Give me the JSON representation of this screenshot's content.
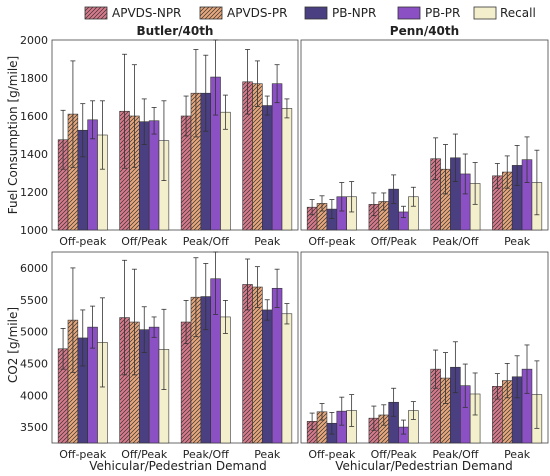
{
  "legend": [
    {
      "name": "APVDS-NPR",
      "color": "#d97a8c",
      "pattern": "hatch"
    },
    {
      "name": "APVDS-PR",
      "color": "#e8a77c",
      "pattern": "hatch"
    },
    {
      "name": "PB-NPR",
      "color": "#4a3f80",
      "pattern": "solid"
    },
    {
      "name": "PB-PR",
      "color": "#8a50c4",
      "pattern": "solid"
    },
    {
      "name": "Recall",
      "color": "#f3efcc",
      "pattern": "solid"
    }
  ],
  "xlabel": "Vehicular/Pedestrian Demand",
  "chart_data": [
    {
      "type": "bar",
      "title": "Butler/40th",
      "ylabel": "Fuel Consumption [g/mile]",
      "ylim": [
        1000,
        2000
      ],
      "yticks": [
        1000,
        1200,
        1400,
        1600,
        1800,
        2000
      ],
      "categories": [
        "Off-peak",
        "Off/Peak",
        "Peak/Off",
        "Peak"
      ],
      "series": [
        {
          "name": "APVDS-NPR",
          "values": [
            1475,
            1625,
            1600,
            1780
          ],
          "err": [
            155,
            300,
            105,
            170
          ]
        },
        {
          "name": "APVDS-PR",
          "values": [
            1610,
            1600,
            1720,
            1770
          ],
          "err": [
            280,
            270,
            230,
            120
          ]
        },
        {
          "name": "PB-NPR",
          "values": [
            1525,
            1570,
            1720,
            1655
          ],
          "err": [
            140,
            120,
            200,
            50
          ]
        },
        {
          "name": "PB-PR",
          "values": [
            1580,
            1575,
            1805,
            1770
          ],
          "err": [
            100,
            70,
            200,
            100
          ]
        },
        {
          "name": "Recall",
          "values": [
            1500,
            1470,
            1620,
            1640
          ],
          "err": [
            180,
            210,
            90,
            50
          ]
        }
      ]
    },
    {
      "type": "bar",
      "title": "Penn/40th",
      "ylabel": "",
      "ylim": [
        1000,
        2000
      ],
      "yticks": [
        1000,
        1200,
        1400,
        1600,
        1800,
        2000
      ],
      "categories": [
        "Off-peak",
        "Off/Peak",
        "Peak/Off",
        "Peak"
      ],
      "series": [
        {
          "name": "APVDS-NPR",
          "values": [
            1120,
            1135,
            1375,
            1285
          ],
          "err": [
            40,
            60,
            110,
            65
          ]
        },
        {
          "name": "APVDS-PR",
          "values": [
            1140,
            1150,
            1320,
            1305
          ],
          "err": [
            40,
            45,
            130,
            85
          ]
        },
        {
          "name": "PB-NPR",
          "values": [
            1110,
            1215,
            1380,
            1340
          ],
          "err": [
            50,
            75,
            125,
            105
          ]
        },
        {
          "name": "PB-PR",
          "values": [
            1175,
            1095,
            1295,
            1370
          ],
          "err": [
            75,
            30,
            105,
            120
          ]
        },
        {
          "name": "Recall",
          "values": [
            1175,
            1175,
            1245,
            1250
          ],
          "err": [
            80,
            50,
            110,
            170
          ]
        }
      ]
    },
    {
      "type": "bar",
      "title": "",
      "ylabel": "CO2 [g/mile]",
      "ylim": [
        3250,
        6250
      ],
      "yticks": [
        3500,
        4000,
        4500,
        5000,
        5500,
        6000
      ],
      "categories": [
        "Off-peak",
        "Off/Peak",
        "Peak/Off",
        "Peak"
      ],
      "series": [
        {
          "name": "APVDS-NPR",
          "values": [
            4730,
            5220,
            5150,
            5740
          ],
          "err": [
            320,
            900,
            340,
            400
          ]
        },
        {
          "name": "APVDS-PR",
          "values": [
            5180,
            5150,
            5540,
            5700
          ],
          "err": [
            820,
            830,
            620,
            320
          ]
        },
        {
          "name": "PB-NPR",
          "values": [
            4900,
            5030,
            5550,
            5340
          ],
          "err": [
            440,
            360,
            520,
            160
          ]
        },
        {
          "name": "PB-PR",
          "values": [
            5070,
            5070,
            5830,
            5680
          ],
          "err": [
            330,
            160,
            560,
            300
          ]
        },
        {
          "name": "Recall",
          "values": [
            4830,
            4720,
            5230,
            5280
          ],
          "err": [
            700,
            630,
            260,
            160
          ]
        }
      ]
    },
    {
      "type": "bar",
      "title": "",
      "ylabel": "",
      "ylim": [
        3250,
        6250
      ],
      "yticks": [
        3500,
        4000,
        4500,
        5000,
        5500,
        6000
      ],
      "categories": [
        "Off-peak",
        "Off/Peak",
        "Peak/Off",
        "Peak"
      ],
      "series": [
        {
          "name": "APVDS-NPR",
          "values": [
            3590,
            3640,
            4410,
            4140
          ],
          "err": [
            130,
            190,
            300,
            200
          ]
        },
        {
          "name": "APVDS-PR",
          "values": [
            3740,
            3690,
            4270,
            4230
          ],
          "err": [
            130,
            160,
            400,
            270
          ]
        },
        {
          "name": "PB-NPR",
          "values": [
            3560,
            3890,
            4440,
            4290
          ],
          "err": [
            170,
            220,
            400,
            330
          ]
        },
        {
          "name": "PB-PR",
          "values": [
            3750,
            3500,
            4150,
            4410
          ],
          "err": [
            220,
            110,
            340,
            380
          ]
        },
        {
          "name": "Recall",
          "values": [
            3760,
            3760,
            4020,
            4010
          ],
          "err": [
            250,
            140,
            330,
            530
          ]
        }
      ]
    }
  ]
}
